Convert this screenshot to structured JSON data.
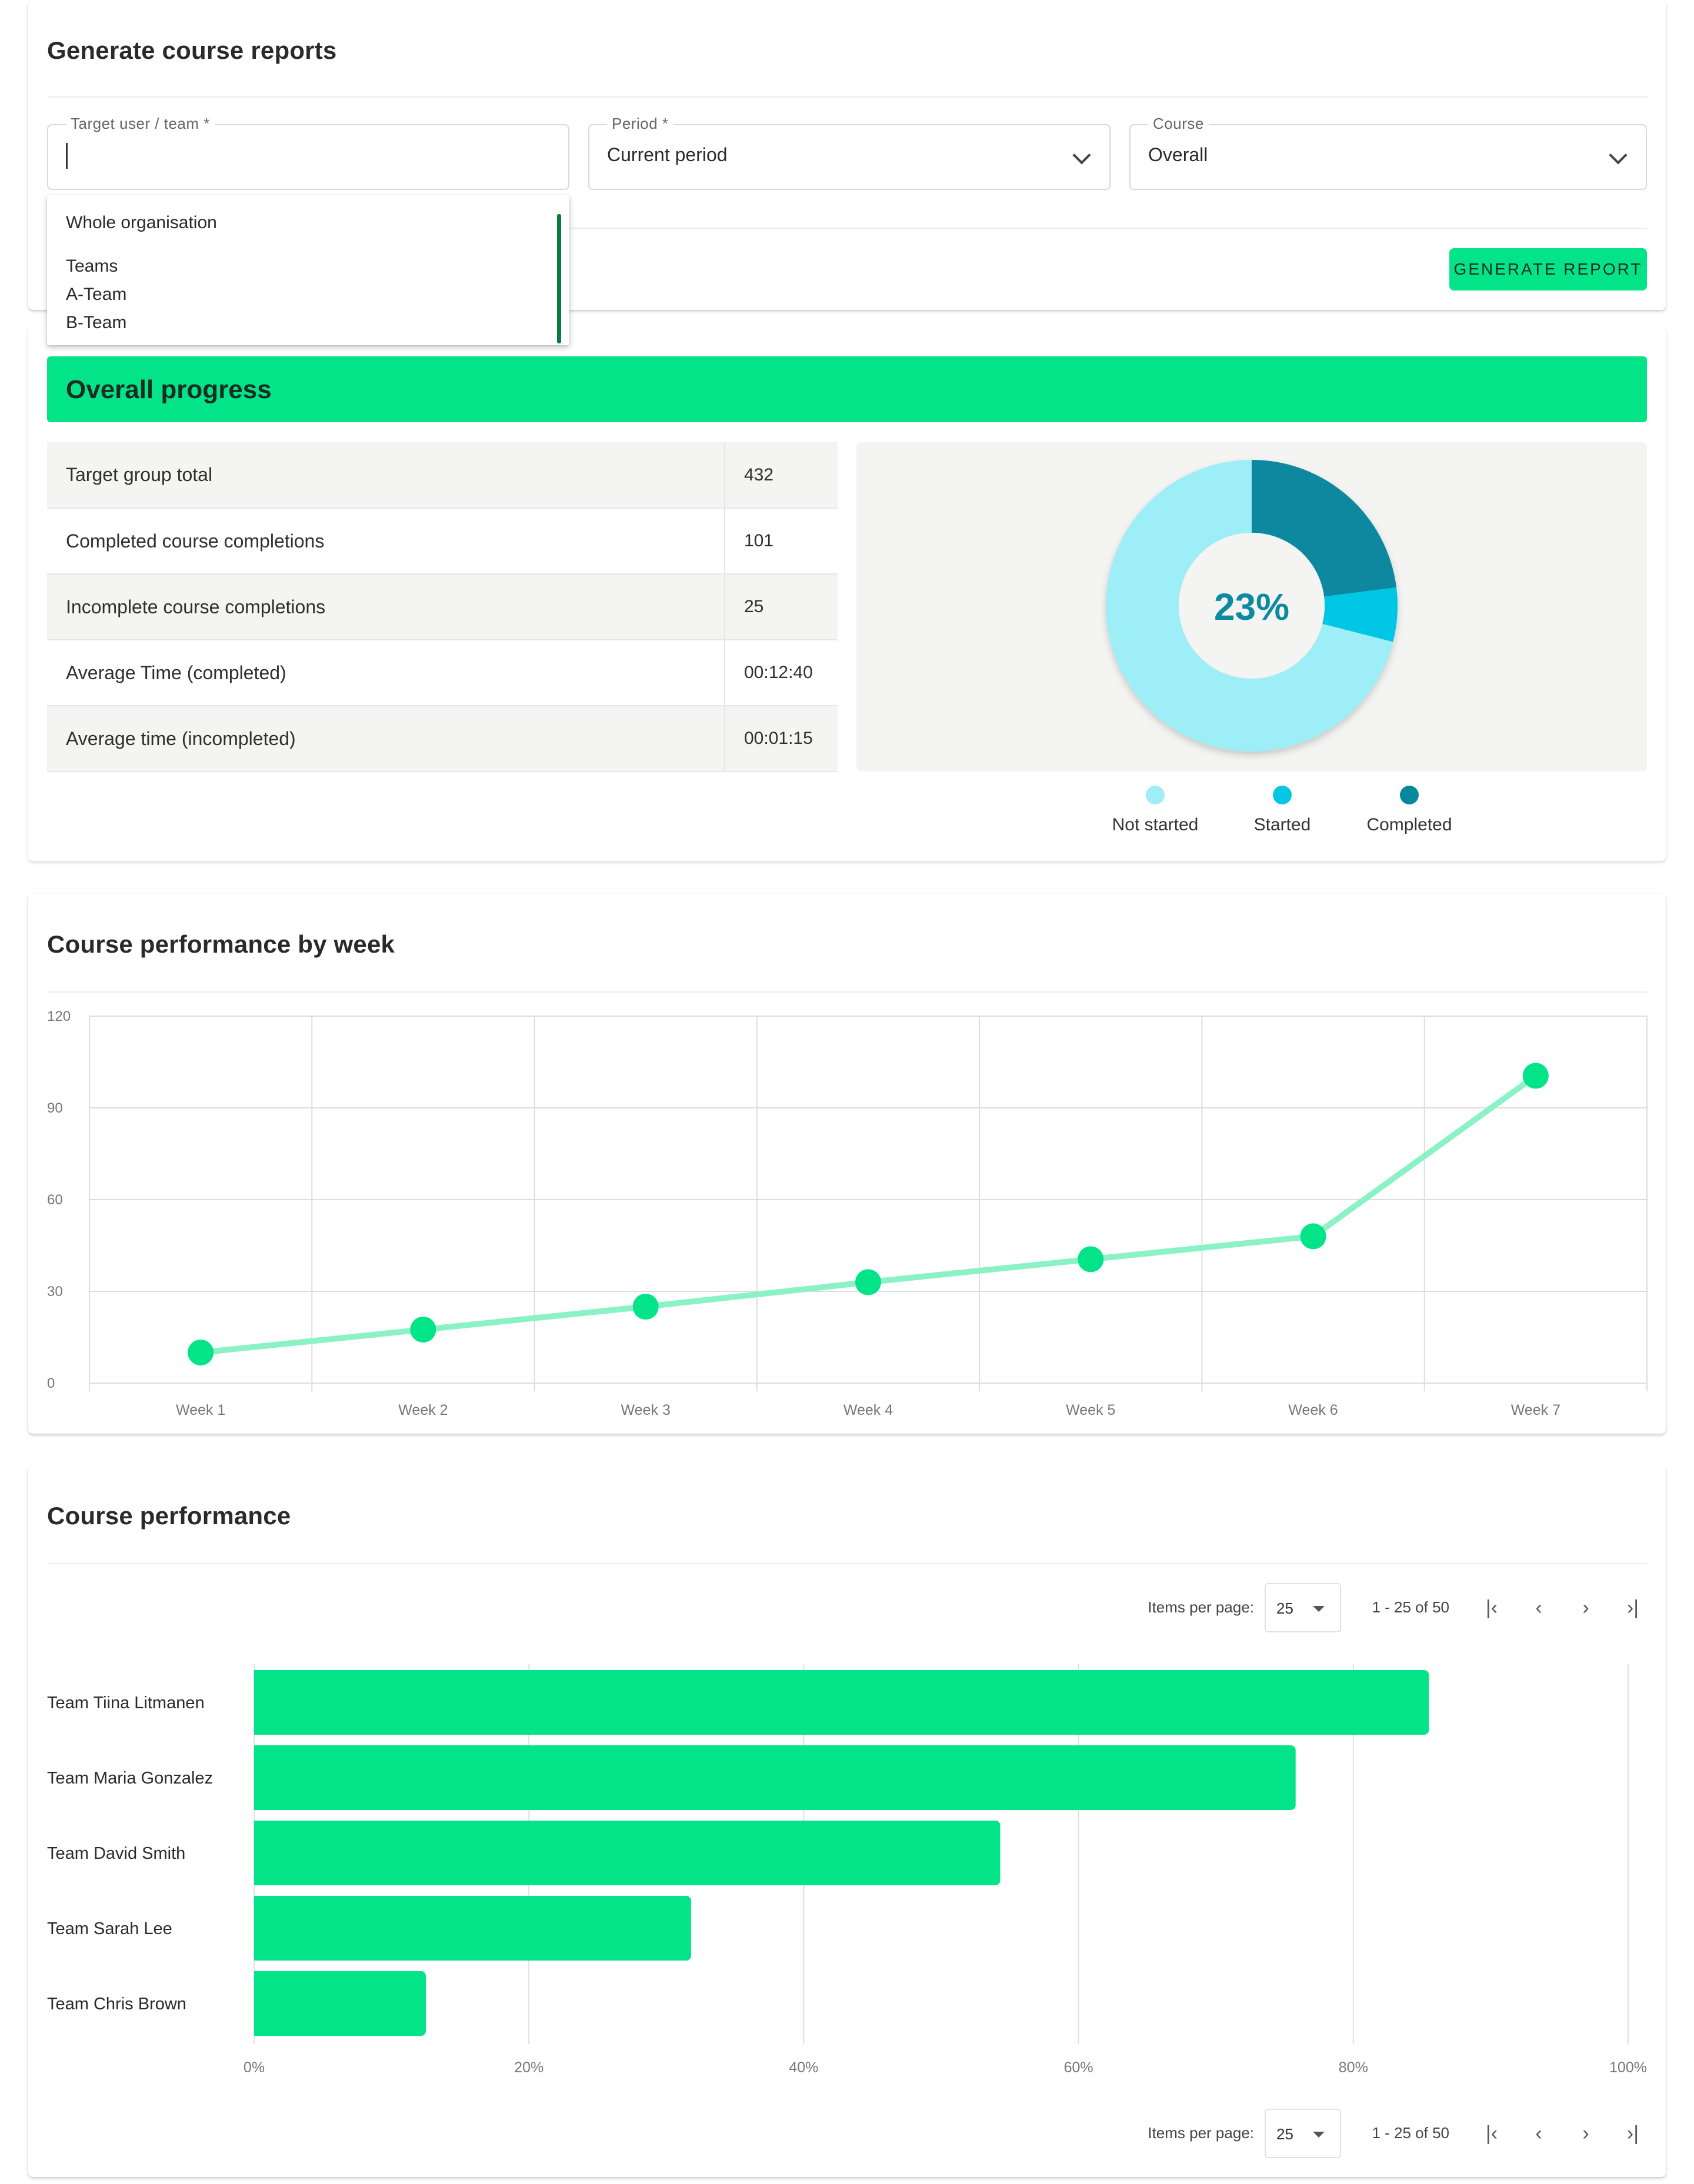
{
  "report_form": {
    "title": "Generate course reports",
    "target_field": {
      "label": "Target user / team *",
      "value": ""
    },
    "period_field": {
      "label": "Period *",
      "value": "Current period"
    },
    "course_field": {
      "label": "Course",
      "value": "Overall"
    },
    "dropdown": {
      "option_whole": "Whole organisation",
      "group_label": "Teams",
      "team_options": [
        "A-Team",
        "B-Team"
      ]
    },
    "generate_button": "GENERATE REPORT"
  },
  "overall_progress": {
    "title": "Overall progress",
    "stats": [
      {
        "label": "Target group total",
        "value": "432"
      },
      {
        "label": "Completed course completions",
        "value": "101"
      },
      {
        "label": "Incomplete course completions",
        "value": "25"
      },
      {
        "label": "Average Time (completed)",
        "value": "00:12:40"
      },
      {
        "label": "Average time (incompleted)",
        "value": "00:01:15"
      }
    ],
    "donut_center_label": "23%",
    "legend": [
      {
        "label": "Not started",
        "color": "#9eeef8"
      },
      {
        "label": "Started",
        "color": "#06c6e6"
      },
      {
        "label": "Completed",
        "color": "#07889e"
      }
    ]
  },
  "chart_data": [
    {
      "type": "pie",
      "categories": [
        "Not started",
        "Started",
        "Completed"
      ],
      "values": [
        71,
        6,
        23
      ],
      "colors": [
        "#9eeef8",
        "#06c6e6",
        "#07889e"
      ],
      "center_label": "23%",
      "legend_position": "bottom"
    },
    {
      "type": "line",
      "title": "Course performance by week",
      "categories": [
        "Week 1",
        "Week 2",
        "Week 3",
        "Week 4",
        "Week 5",
        "Week 6",
        "Week 7"
      ],
      "values": [
        10,
        17.5,
        25,
        33,
        40.5,
        48,
        100.5
      ],
      "ylim": [
        0,
        120
      ],
      "yticks": [
        0,
        30,
        60,
        90,
        120
      ],
      "line_color": "#8bf2c6",
      "marker_color": "#03e489",
      "grid": true
    },
    {
      "type": "bar",
      "orientation": "horizontal",
      "title": "Course performance",
      "categories": [
        "Team Tiina Litmanen",
        "Team Maria Gonzalez",
        "Team David Smith",
        "Team Sarah Lee",
        "Team Chris Brown"
      ],
      "values": [
        85.5,
        75.8,
        54.3,
        31.8,
        12.5
      ],
      "xlim": [
        0,
        100
      ],
      "xticks": [
        "0%",
        "20%",
        "40%",
        "60%",
        "80%",
        "100%"
      ],
      "bar_color": "#03e489",
      "grid": true
    }
  ],
  "course_performance": {
    "pager": {
      "items_per_page_label": "Items per page:",
      "items_per_page_value": "25",
      "range_text": "1 - 25 of 50"
    }
  }
}
